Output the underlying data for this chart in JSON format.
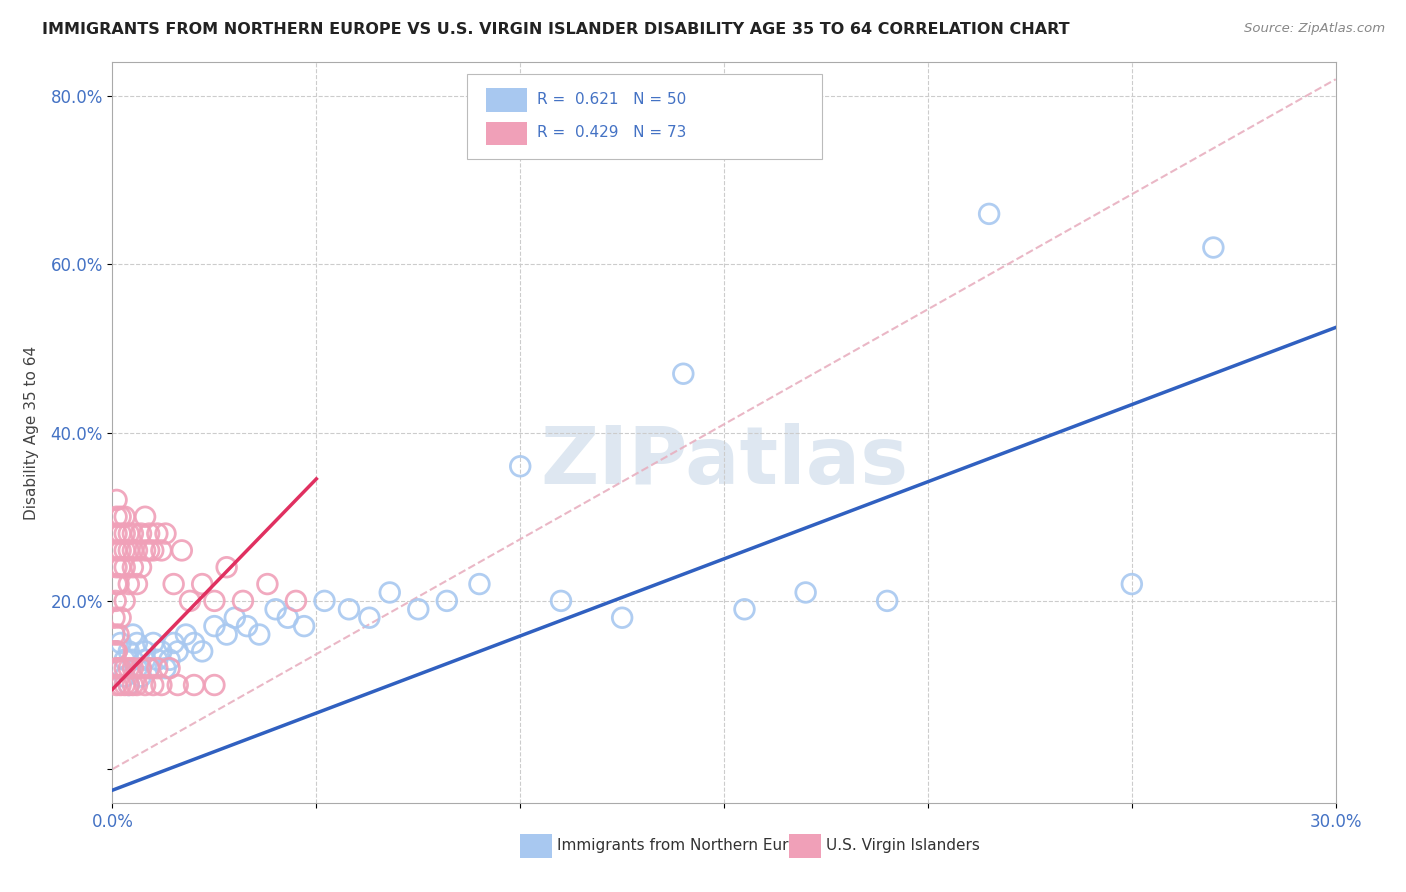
{
  "title": "IMMIGRANTS FROM NORTHERN EUROPE VS U.S. VIRGIN ISLANDER DISABILITY AGE 35 TO 64 CORRELATION CHART",
  "source": "Source: ZipAtlas.com",
  "ylabel": "Disability Age 35 to 64",
  "xlim": [
    0.0,
    0.3
  ],
  "ylim": [
    -0.04,
    0.84
  ],
  "xtick_vals": [
    0.0,
    0.05,
    0.1,
    0.15,
    0.2,
    0.25,
    0.3
  ],
  "ytick_vals": [
    0.0,
    0.2,
    0.4,
    0.6,
    0.8
  ],
  "xticklabels": [
    "0.0%",
    "",
    "",
    "",
    "",
    "",
    "30.0%"
  ],
  "yticklabels": [
    "",
    "20.0%",
    "40.0%",
    "60.0%",
    "80.0%"
  ],
  "blue_color": "#A8C8F0",
  "pink_color": "#F0A0B8",
  "blue_line_color": "#3060C0",
  "pink_line_color": "#E03060",
  "diag_color": "#E8B0C0",
  "watermark_color": "#C8D8E8",
  "blue_scatter_x": [
    0.001,
    0.002,
    0.002,
    0.003,
    0.003,
    0.004,
    0.004,
    0.005,
    0.005,
    0.006,
    0.006,
    0.007,
    0.008,
    0.008,
    0.009,
    0.01,
    0.011,
    0.012,
    0.013,
    0.014,
    0.015,
    0.016,
    0.018,
    0.02,
    0.022,
    0.025,
    0.028,
    0.03,
    0.033,
    0.036,
    0.04,
    0.043,
    0.047,
    0.052,
    0.058,
    0.063,
    0.068,
    0.075,
    0.082,
    0.09,
    0.1,
    0.11,
    0.125,
    0.14,
    0.155,
    0.17,
    0.19,
    0.215,
    0.25,
    0.27
  ],
  "blue_scatter_y": [
    0.14,
    0.12,
    0.15,
    0.13,
    0.11,
    0.14,
    0.1,
    0.13,
    0.16,
    0.12,
    0.15,
    0.11,
    0.13,
    0.14,
    0.12,
    0.15,
    0.13,
    0.14,
    0.12,
    0.13,
    0.15,
    0.14,
    0.16,
    0.15,
    0.14,
    0.17,
    0.16,
    0.18,
    0.17,
    0.16,
    0.19,
    0.18,
    0.17,
    0.2,
    0.19,
    0.18,
    0.21,
    0.19,
    0.2,
    0.22,
    0.36,
    0.2,
    0.18,
    0.47,
    0.19,
    0.21,
    0.2,
    0.66,
    0.22,
    0.62
  ],
  "pink_scatter_x": [
    0.0005,
    0.0005,
    0.0005,
    0.0008,
    0.001,
    0.001,
    0.001,
    0.001,
    0.001,
    0.001,
    0.001,
    0.0015,
    0.0015,
    0.002,
    0.002,
    0.002,
    0.002,
    0.002,
    0.003,
    0.003,
    0.003,
    0.003,
    0.003,
    0.004,
    0.004,
    0.004,
    0.005,
    0.005,
    0.005,
    0.006,
    0.006,
    0.007,
    0.007,
    0.008,
    0.008,
    0.009,
    0.009,
    0.01,
    0.011,
    0.012,
    0.013,
    0.015,
    0.017,
    0.019,
    0.022,
    0.025,
    0.028,
    0.032,
    0.038,
    0.045,
    0.001,
    0.001,
    0.001,
    0.0015,
    0.002,
    0.002,
    0.003,
    0.003,
    0.004,
    0.004,
    0.005,
    0.005,
    0.006,
    0.007,
    0.008,
    0.009,
    0.01,
    0.011,
    0.012,
    0.014,
    0.016,
    0.02,
    0.025
  ],
  "pink_scatter_y": [
    0.14,
    0.16,
    0.18,
    0.2,
    0.22,
    0.24,
    0.26,
    0.28,
    0.3,
    0.32,
    0.14,
    0.16,
    0.22,
    0.18,
    0.24,
    0.26,
    0.28,
    0.3,
    0.2,
    0.24,
    0.26,
    0.28,
    0.3,
    0.22,
    0.26,
    0.28,
    0.24,
    0.26,
    0.28,
    0.22,
    0.26,
    0.24,
    0.28,
    0.26,
    0.3,
    0.26,
    0.28,
    0.26,
    0.28,
    0.26,
    0.28,
    0.22,
    0.26,
    0.2,
    0.22,
    0.2,
    0.24,
    0.2,
    0.22,
    0.2,
    0.12,
    0.14,
    0.1,
    0.12,
    0.1,
    0.12,
    0.1,
    0.12,
    0.1,
    0.12,
    0.1,
    0.12,
    0.1,
    0.12,
    0.1,
    0.12,
    0.1,
    0.12,
    0.1,
    0.12,
    0.1,
    0.1,
    0.1
  ],
  "blue_line_x": [
    0.0,
    0.3
  ],
  "blue_line_y": [
    -0.025,
    0.525
  ],
  "pink_line_x": [
    0.0,
    0.05
  ],
  "pink_line_y": [
    0.095,
    0.345
  ],
  "diag_line_x": [
    0.0,
    0.3
  ],
  "diag_line_y": [
    0.0,
    0.82
  ]
}
